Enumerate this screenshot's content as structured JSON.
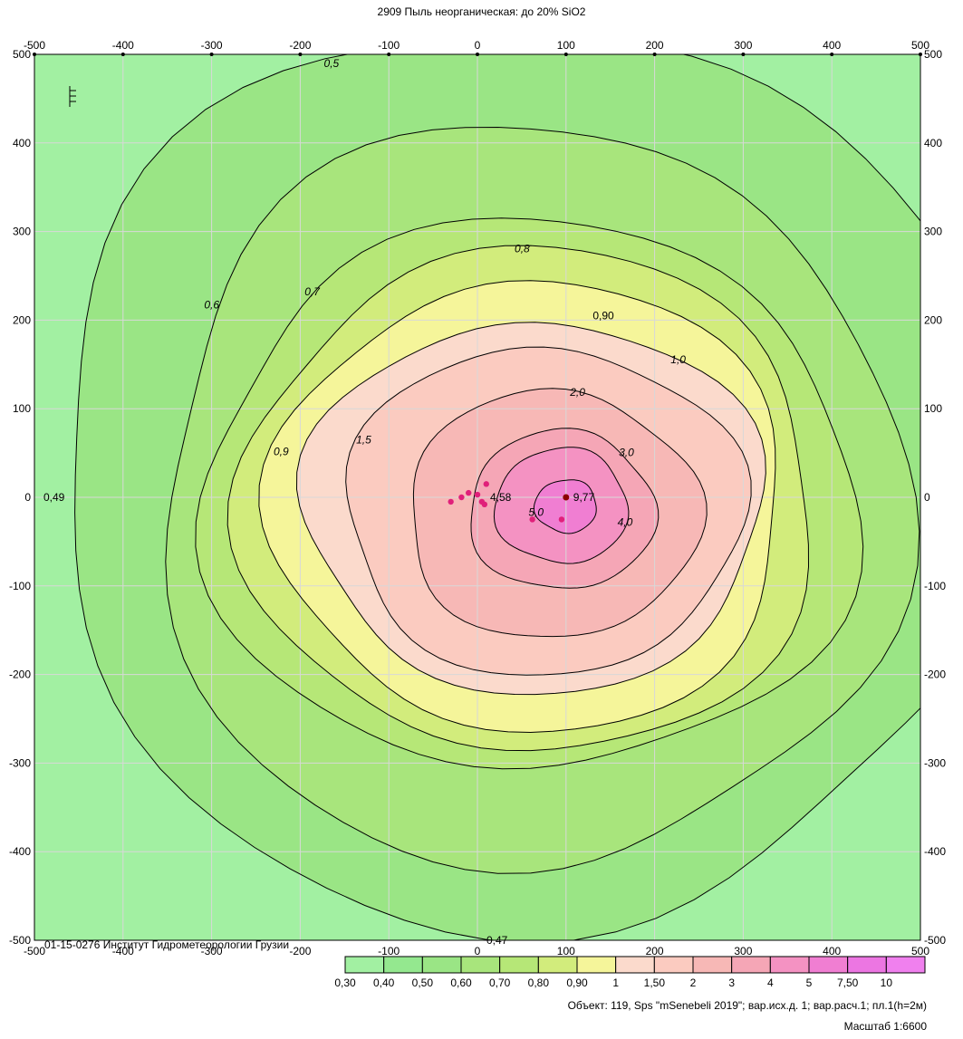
{
  "title": "2909 Пыль неорганическая: до 20% SiO2",
  "credit": "01-15-0276 Институт Гидрометеорологии Грузии",
  "object_line": "Объект: 119, Sps \"mSenebeli 2019\"; вар.исх.д. 1; вар.расч.1; пл.1(h=2м)",
  "scale_line": "Масштаб 1:6600",
  "chart_data": {
    "type": "heatmap",
    "title": "2909 Пыль неорганическая: до 20% SiO2",
    "xlim": [
      -500,
      500
    ],
    "ylim": [
      -500,
      500
    ],
    "x_ticks": [
      -500,
      -400,
      -300,
      -200,
      -100,
      0,
      100,
      200,
      300,
      400,
      500
    ],
    "y_ticks": [
      500,
      400,
      300,
      200,
      100,
      0,
      -100,
      -200,
      -300,
      -400,
      -500
    ],
    "grid": true,
    "center": {
      "x": 100,
      "y": 0,
      "value": "9,77"
    },
    "secondary_point": {
      "x": 0,
      "y": 0,
      "value": "4,58"
    },
    "edge_values": [
      {
        "label": "0,49",
        "x": -500,
        "y": 0
      },
      {
        "label": "0,47",
        "x": 0,
        "y": -500
      },
      {
        "label": "0,90",
        "x": 120,
        "y": 205
      }
    ],
    "levels": [
      0.3,
      0.4,
      0.5,
      0.6,
      0.7,
      0.8,
      0.9,
      1,
      1.5,
      2,
      3,
      4,
      5,
      7.5,
      10
    ],
    "legend": {
      "labels": [
        "0,30",
        "0,40",
        "0,50",
        "0,60",
        "0,70",
        "0,80",
        "0,90",
        "1",
        "1,50",
        "2",
        "3",
        "4",
        "5",
        "7,50",
        "10"
      ],
      "colors": [
        "#a2f0a2",
        "#94e88f",
        "#9ae585",
        "#a8e57c",
        "#b6e777",
        "#d2ec7c",
        "#f5f59a",
        "#fbdacc",
        "#fbcbc0",
        "#f7b8b6",
        "#f5a6b6",
        "#f492c2",
        "#f07ed2",
        "#ec76e2",
        "#f080ee"
      ]
    },
    "contours": [
      {
        "label": "0,5",
        "level": 0.5,
        "rx": 540,
        "ry": 510,
        "cx": 60,
        "cy": 25
      },
      {
        "label": "0,6",
        "level": 0.6,
        "rx": 420,
        "ry": 420,
        "cx": 60,
        "cy": 0
      },
      {
        "label": "0,7",
        "level": 0.7,
        "rx": 370,
        "ry": 310,
        "cx": 60,
        "cy": 0
      },
      {
        "label": "0,8",
        "level": 0.8,
        "rx": 325,
        "ry": 285,
        "cx": 60,
        "cy": -5
      },
      {
        "label": "0,9",
        "level": 0.9,
        "rx": 290,
        "ry": 255,
        "cx": 60,
        "cy": -10
      },
      {
        "label": "1,0",
        "level": 1.0,
        "rx": 260,
        "ry": 210,
        "cx": 65,
        "cy": -10
      },
      {
        "label": "1,5",
        "level": 1.5,
        "rx": 225,
        "ry": 185,
        "cx": 75,
        "cy": -15
      },
      {
        "label": "2,0",
        "level": 2.0,
        "rx": 165,
        "ry": 140,
        "cx": 85,
        "cy": -20
      },
      {
        "label": "3,0",
        "level": 3.0,
        "rx": 105,
        "ry": 90,
        "cx": 95,
        "cy": -15
      },
      {
        "label": "4,0",
        "level": 4.0,
        "rx": 75,
        "ry": 65,
        "cx": 95,
        "cy": -10
      },
      {
        "label": "5,0",
        "level": 5.0,
        "rx": 35,
        "ry": 30,
        "cx": 100,
        "cy": -10
      }
    ],
    "sources": [
      {
        "x": -30,
        "y": -5
      },
      {
        "x": -18,
        "y": 0
      },
      {
        "x": -10,
        "y": 5
      },
      {
        "x": 0,
        "y": 3
      },
      {
        "x": 10,
        "y": 15
      },
      {
        "x": 5,
        "y": -5
      },
      {
        "x": 8,
        "y": -8
      },
      {
        "x": 62,
        "y": -25
      },
      {
        "x": 95,
        "y": -25
      },
      {
        "x": 100,
        "y": 0
      }
    ]
  }
}
